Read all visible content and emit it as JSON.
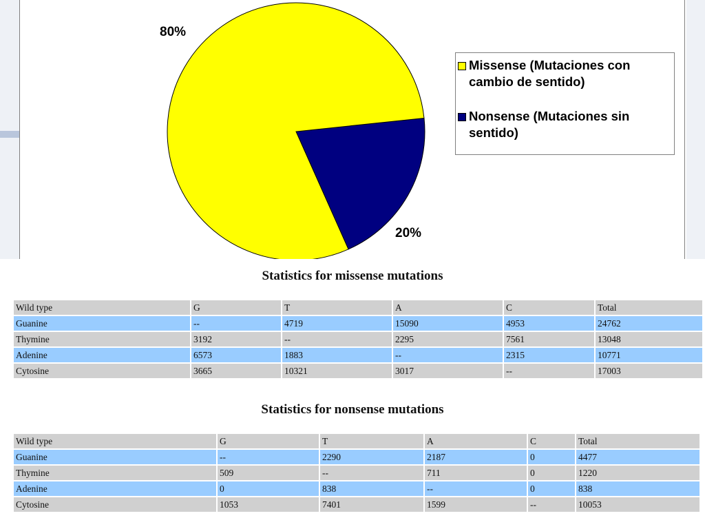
{
  "chart_data": {
    "type": "pie",
    "slices": [
      {
        "name": "Missense (Mutaciones con cambio de sentido)",
        "value": 80,
        "label": "80%",
        "color": "#ffff00"
      },
      {
        "name": "Nonsense (Mutaciones sin sentido)",
        "value": 20,
        "label": "20%",
        "color": "#000080"
      }
    ],
    "legend_position": "right"
  },
  "legend": {
    "missense_line1": "Missense (Mutaciones con",
    "missense_line2": "cambio de sentido)",
    "nonsense_line1": "Nonsense (Mutaciones sin",
    "nonsense_line2": "sentido)"
  },
  "missense_table": {
    "title": "Statistics for missense mutations",
    "headers": [
      "Wild type",
      "G",
      "T",
      "A",
      "C",
      "Total"
    ],
    "rows": [
      [
        "Guanine",
        "--",
        "4719",
        "15090",
        "4953",
        "24762"
      ],
      [
        "Thymine",
        "3192",
        "--",
        "2295",
        "7561",
        "13048"
      ],
      [
        "Adenine",
        "6573",
        "1883",
        "--",
        "2315",
        "10771"
      ],
      [
        "Cytosine",
        "3665",
        "10321",
        "3017",
        "--",
        "17003"
      ]
    ]
  },
  "nonsense_table": {
    "title": "Statistics for nonsense mutations",
    "headers": [
      "Wild type",
      "G",
      "T",
      "A",
      "C",
      "Total"
    ],
    "rows": [
      [
        "Guanine",
        "--",
        "2290",
        "2187",
        "0",
        "4477"
      ],
      [
        "Thymine",
        "509",
        "--",
        "711",
        "0",
        "1220"
      ],
      [
        "Adenine",
        "0",
        "838",
        "--",
        "0",
        "838"
      ],
      [
        "Cytosine",
        "1053",
        "7401",
        "1599",
        "--",
        "10053"
      ]
    ]
  }
}
